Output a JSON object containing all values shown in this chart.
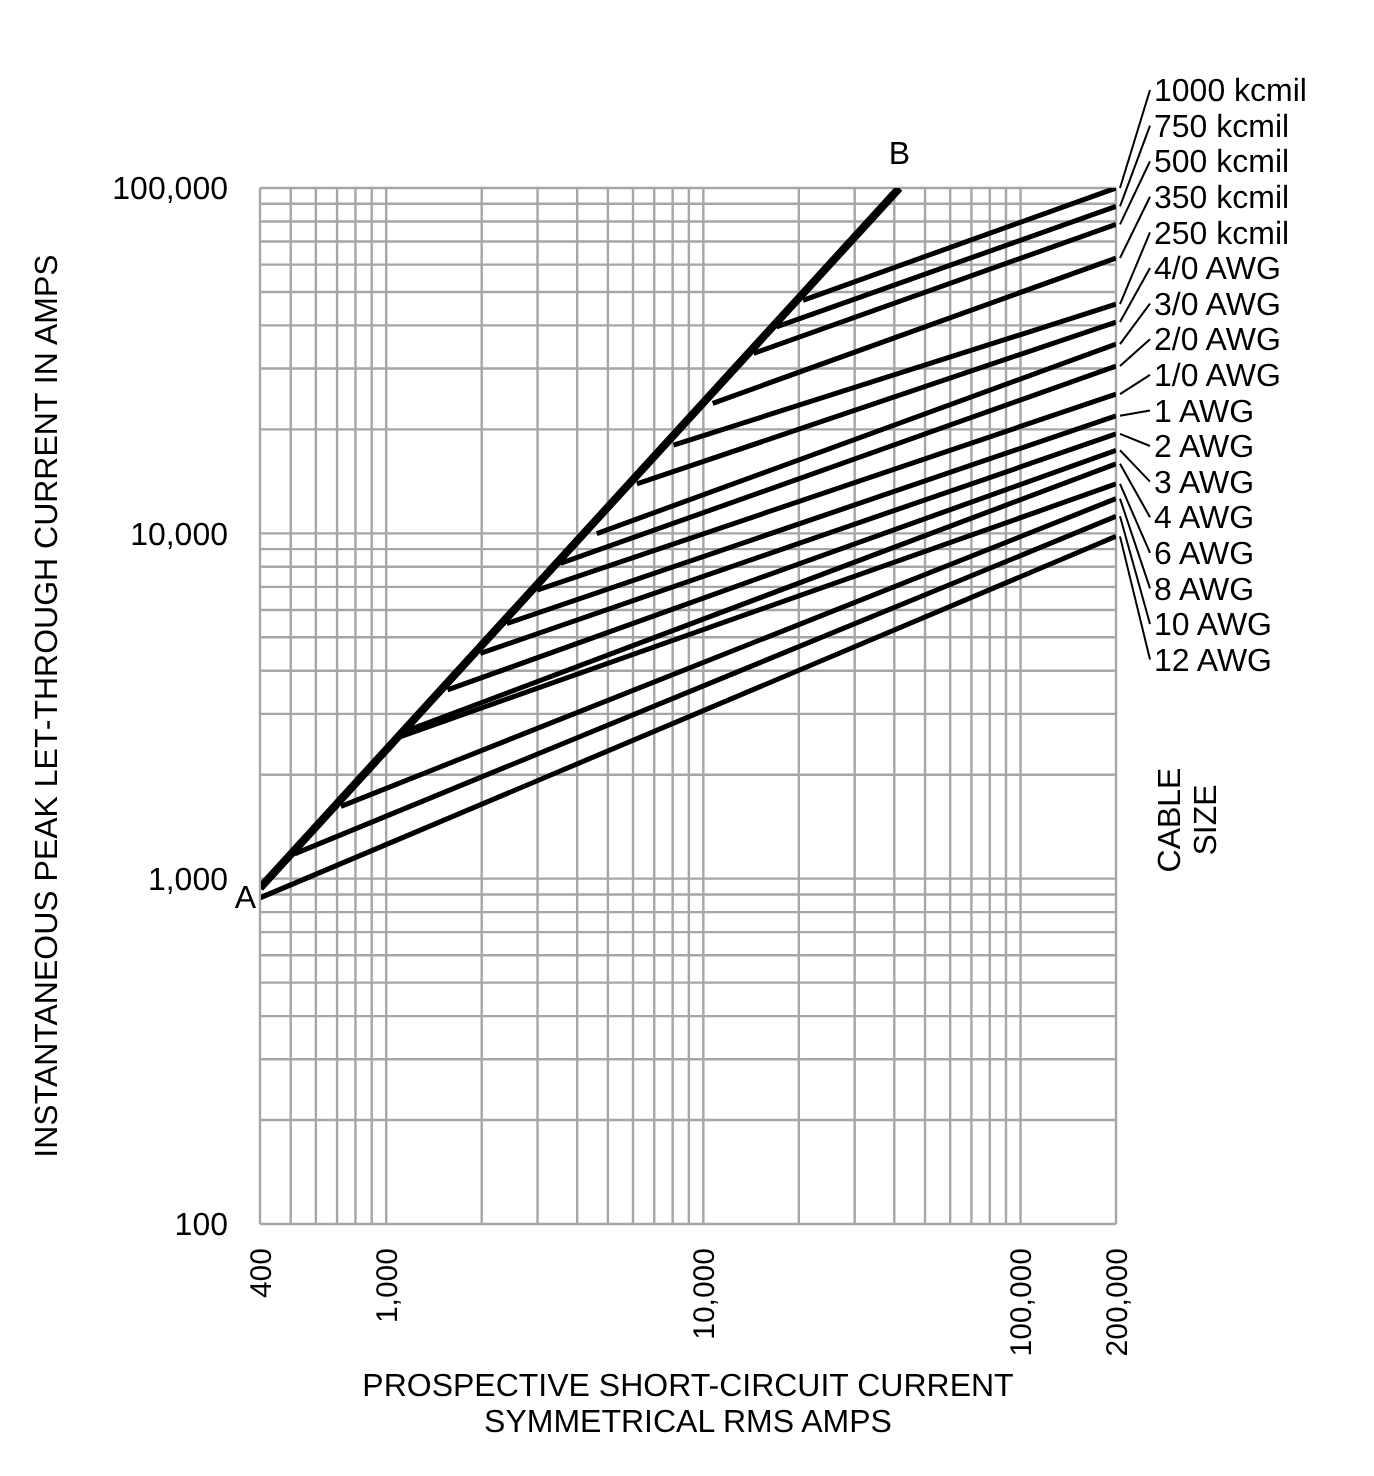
{
  "chart_data": {
    "type": "line",
    "log": "xy",
    "grid": true,
    "xlabel": "PROSPECTIVE SHORT-CIRCUIT CURRENT\nSYMMETRICAL RMS AMPS",
    "ylabel": "INSTANTANEOUS PEAK LET-THROUGH CURRENT IN AMPS",
    "legend_title": "CABLE\nSIZE",
    "xlim": [
      400,
      200000
    ],
    "ylim": [
      100,
      100000
    ],
    "xticks": [
      400,
      {
        "value": 500,
        "label": null
      },
      {
        "value": 600,
        "label": null
      },
      {
        "value": 700,
        "label": null
      },
      {
        "value": 800,
        "label": null
      },
      {
        "value": 900,
        "label": null
      },
      {
        "value": 1000,
        "label": "1,000"
      },
      {
        "value": 2000,
        "label": null
      },
      {
        "value": 3000,
        "label": null
      },
      {
        "value": 4000,
        "label": null
      },
      {
        "value": 5000,
        "label": null
      },
      {
        "value": 6000,
        "label": null
      },
      {
        "value": 7000,
        "label": null
      },
      {
        "value": 8000,
        "label": null
      },
      {
        "value": 9000,
        "label": null
      },
      {
        "value": 10000,
        "label": "10,000"
      },
      {
        "value": 20000,
        "label": null
      },
      {
        "value": 30000,
        "label": null
      },
      {
        "value": 40000,
        "label": null
      },
      {
        "value": 50000,
        "label": null
      },
      {
        "value": 60000,
        "label": null
      },
      {
        "value": 70000,
        "label": null
      },
      {
        "value": 80000,
        "label": null
      },
      {
        "value": 90000,
        "label": null
      },
      {
        "value": 100000,
        "label": "100,000"
      },
      {
        "value": 200000,
        "label": "200,000"
      }
    ],
    "yticks": [
      100,
      {
        "value": 200,
        "label": null
      },
      {
        "value": 300,
        "label": null
      },
      {
        "value": 400,
        "label": null
      },
      {
        "value": 500,
        "label": null
      },
      {
        "value": 600,
        "label": null
      },
      {
        "value": 700,
        "label": null
      },
      {
        "value": 800,
        "label": null
      },
      {
        "value": 900,
        "label": null
      },
      {
        "value": 1000,
        "label": "1,000"
      },
      {
        "value": 2000,
        "label": null
      },
      {
        "value": 3000,
        "label": null
      },
      {
        "value": 4000,
        "label": null
      },
      {
        "value": 5000,
        "label": null
      },
      {
        "value": 6000,
        "label": null
      },
      {
        "value": 7000,
        "label": null
      },
      {
        "value": 8000,
        "label": null
      },
      {
        "value": 9000,
        "label": null
      },
      {
        "value": 10000,
        "label": "10,000"
      },
      {
        "value": 20000,
        "label": null
      },
      {
        "value": 30000,
        "label": null
      },
      {
        "value": 40000,
        "label": null
      },
      {
        "value": 50000,
        "label": null
      },
      {
        "value": 60000,
        "label": null
      },
      {
        "value": 70000,
        "label": null
      },
      {
        "value": 80000,
        "label": null
      },
      {
        "value": 90000,
        "label": null
      },
      {
        "value": 100000,
        "label": "100,000"
      }
    ],
    "annotations": [
      {
        "text": "A",
        "x": 400,
        "y": 940
      },
      {
        "text": "B",
        "x": 41500,
        "y": 100000
      }
    ],
    "series": [
      {
        "color": "#000000",
        "x": [
          400,
          41500
        ],
        "values": [
          940,
          100000
        ]
      },
      {
        "name": "1000 kcmil",
        "color": "#000000",
        "x": [
          20600,
          200000
        ],
        "values": [
          47300,
          100000
        ]
      },
      {
        "name": "750 kcmil",
        "color": "#000000",
        "x": [
          17000,
          200000
        ],
        "values": [
          39600,
          88500
        ]
      },
      {
        "name": "500 kcmil",
        "color": "#000000",
        "x": [
          14400,
          200000
        ],
        "values": [
          33200,
          78500
        ]
      },
      {
        "name": "350 kcmil",
        "color": "#000000",
        "x": [
          10700,
          200000
        ],
        "values": [
          23800,
          62700
        ]
      },
      {
        "name": "250 kcmil",
        "color": "#000000",
        "x": [
          8050,
          200000
        ],
        "values": [
          18000,
          46100
        ]
      },
      {
        "name": "4/0 AWG",
        "color": "#000000",
        "x": [
          6170,
          200000
        ],
        "values": [
          13900,
          40900
        ]
      },
      {
        "name": "3/0 AWG",
        "color": "#000000",
        "x": [
          4610,
          200000
        ],
        "values": [
          9980,
          35300
        ]
      },
      {
        "name": "2/0 AWG",
        "color": "#000000",
        "x": [
          3540,
          200000
        ],
        "values": [
          8180,
          30500
        ]
      },
      {
        "name": "1/0 AWG",
        "color": "#000000",
        "x": [
          2990,
          200000
        ],
        "values": [
          6850,
          25300
        ]
      },
      {
        "name": "1 AWG",
        "color": "#000000",
        "x": [
          2400,
          200000
        ],
        "values": [
          5480,
          21900
        ]
      },
      {
        "name": "2 AWG",
        "color": "#000000",
        "x": [
          1980,
          200000
        ],
        "values": [
          4490,
          19400
        ]
      },
      {
        "name": "3 AWG",
        "color": "#000000",
        "x": [
          1560,
          200000
        ],
        "values": [
          3520,
          17400
        ]
      },
      {
        "name": "4 AWG",
        "color": "#000000",
        "x": [
          1170,
          200000
        ],
        "values": [
          2690,
          15900
        ]
      },
      {
        "name": "6 AWG",
        "color": "#000000",
        "x": [
          1110,
          200000
        ],
        "values": [
          2580,
          13900
        ]
      },
      {
        "name": "8 AWG",
        "color": "#000000",
        "x": [
          720,
          200000
        ],
        "values": [
          1620,
          12600
        ]
      },
      {
        "name": "10 AWG",
        "color": "#000000",
        "x": [
          514,
          200000
        ],
        "values": [
          1180,
          11200
        ]
      },
      {
        "name": "12 AWG",
        "color": "#000000",
        "x": [
          400,
          200000
        ],
        "values": [
          880,
          9800
        ]
      }
    ]
  }
}
